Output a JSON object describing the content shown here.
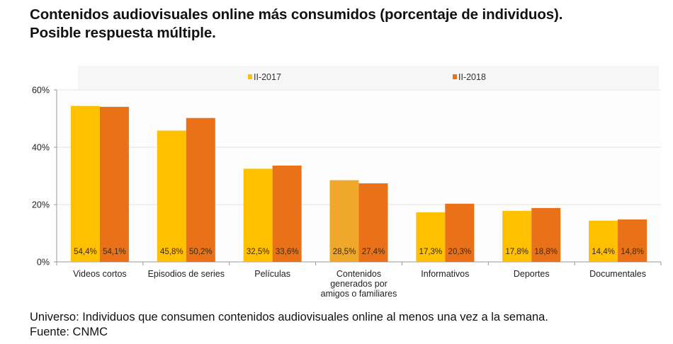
{
  "title": {
    "line1": "Contenidos audiovisuales online más consumidos (porcentaje de individuos).",
    "line2": "Posible respuesta múltiple."
  },
  "footer": {
    "line1": "Universo: Individuos que consumen contenidos audiovisuales online al menos una vez a la semana.",
    "line2": "Fuente: CNMC"
  },
  "colors": {
    "series_2017": "#ffc000",
    "series_2018": "#ea7118",
    "highlight_2017": "#f0a82a",
    "gridline": "#e6e3d6",
    "legend_band": "#f6f6f6",
    "axis": "#999999"
  },
  "chart_data": {
    "type": "bar",
    "title": "Contenidos audiovisuales online más consumidos (porcentaje de individuos). Posible respuesta múltiple.",
    "xlabel": "",
    "ylabel": "",
    "ylim": [
      0,
      60
    ],
    "yticks": [
      0,
      20,
      40,
      60
    ],
    "ytick_labels": [
      "0%",
      "20%",
      "40%",
      "60%"
    ],
    "grid": true,
    "legend_position": "top",
    "categories": [
      [
        "Videos cortos"
      ],
      [
        "Episodios de series"
      ],
      [
        "Películas"
      ],
      [
        "Contenidos",
        "generados por",
        "amigos o familiares"
      ],
      [
        "Informativos"
      ],
      [
        "Deportes"
      ],
      [
        "Documentales"
      ]
    ],
    "series": [
      {
        "name": "II-2017",
        "values": [
          54.4,
          45.8,
          32.5,
          28.5,
          17.3,
          17.8,
          14.4
        ],
        "labels": [
          "54,4%",
          "45,8%",
          "32,5%",
          "28,5%",
          "17,3%",
          "17,8%",
          "14,4%"
        ]
      },
      {
        "name": "II-2018",
        "values": [
          54.1,
          50.2,
          33.6,
          27.4,
          20.3,
          18.8,
          14.8
        ],
        "labels": [
          "54,1%",
          "50,2%",
          "33,6%",
          "27,4%",
          "20,3%",
          "18,8%",
          "14,8%"
        ]
      }
    ],
    "highlighted_points": [
      {
        "series": 0,
        "category": 3
      }
    ]
  }
}
